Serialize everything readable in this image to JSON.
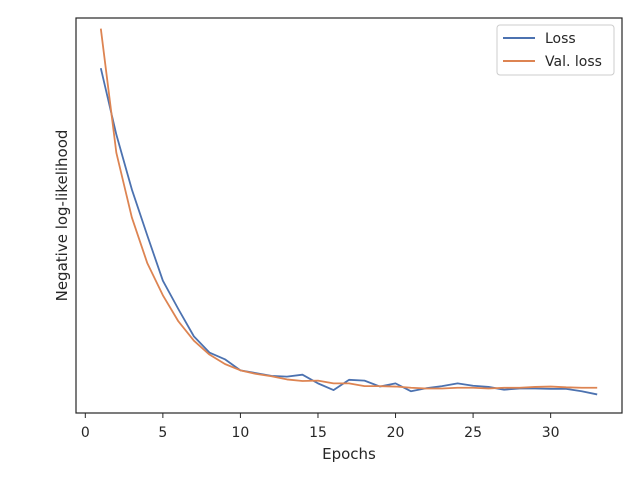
{
  "chart_data": {
    "type": "line",
    "title": "",
    "xlabel": "Epochs",
    "ylabel": "Negative log-likelihood",
    "xlim": [
      -0.6,
      34.6
    ],
    "ylim": [
      0.0,
      1.0
    ],
    "x_ticks": [
      0,
      5,
      10,
      15,
      20,
      25,
      30
    ],
    "y_ticks_shown": false,
    "grid": false,
    "legend_position": "top-right",
    "series": [
      {
        "name": "Loss",
        "color": "#4c72b0",
        "x": [
          1,
          2,
          3,
          4,
          5,
          6,
          7,
          8,
          9,
          10,
          11,
          12,
          13,
          14,
          15,
          16,
          17,
          18,
          19,
          20,
          21,
          22,
          23,
          24,
          25,
          26,
          27,
          28,
          29,
          30,
          31,
          32,
          33
        ],
        "y": [
          0.873,
          0.705,
          0.566,
          0.449,
          0.335,
          0.263,
          0.194,
          0.153,
          0.136,
          0.108,
          0.101,
          0.094,
          0.092,
          0.097,
          0.075,
          0.058,
          0.084,
          0.082,
          0.067,
          0.075,
          0.055,
          0.063,
          0.068,
          0.075,
          0.069,
          0.066,
          0.059,
          0.062,
          0.062,
          0.061,
          0.061,
          0.055,
          0.047
        ]
      },
      {
        "name": "Val. loss",
        "color": "#dd8452",
        "x": [
          1,
          2,
          3,
          4,
          5,
          6,
          7,
          8,
          9,
          10,
          11,
          12,
          13,
          14,
          15,
          16,
          17,
          18,
          19,
          20,
          21,
          22,
          23,
          24,
          25,
          26,
          27,
          28,
          29,
          30,
          31,
          32,
          33
        ],
        "y": [
          0.973,
          0.659,
          0.495,
          0.379,
          0.298,
          0.232,
          0.183,
          0.148,
          0.124,
          0.108,
          0.099,
          0.093,
          0.085,
          0.081,
          0.082,
          0.075,
          0.075,
          0.068,
          0.068,
          0.067,
          0.064,
          0.062,
          0.062,
          0.064,
          0.064,
          0.062,
          0.064,
          0.064,
          0.066,
          0.067,
          0.065,
          0.064,
          0.064
        ]
      }
    ]
  }
}
